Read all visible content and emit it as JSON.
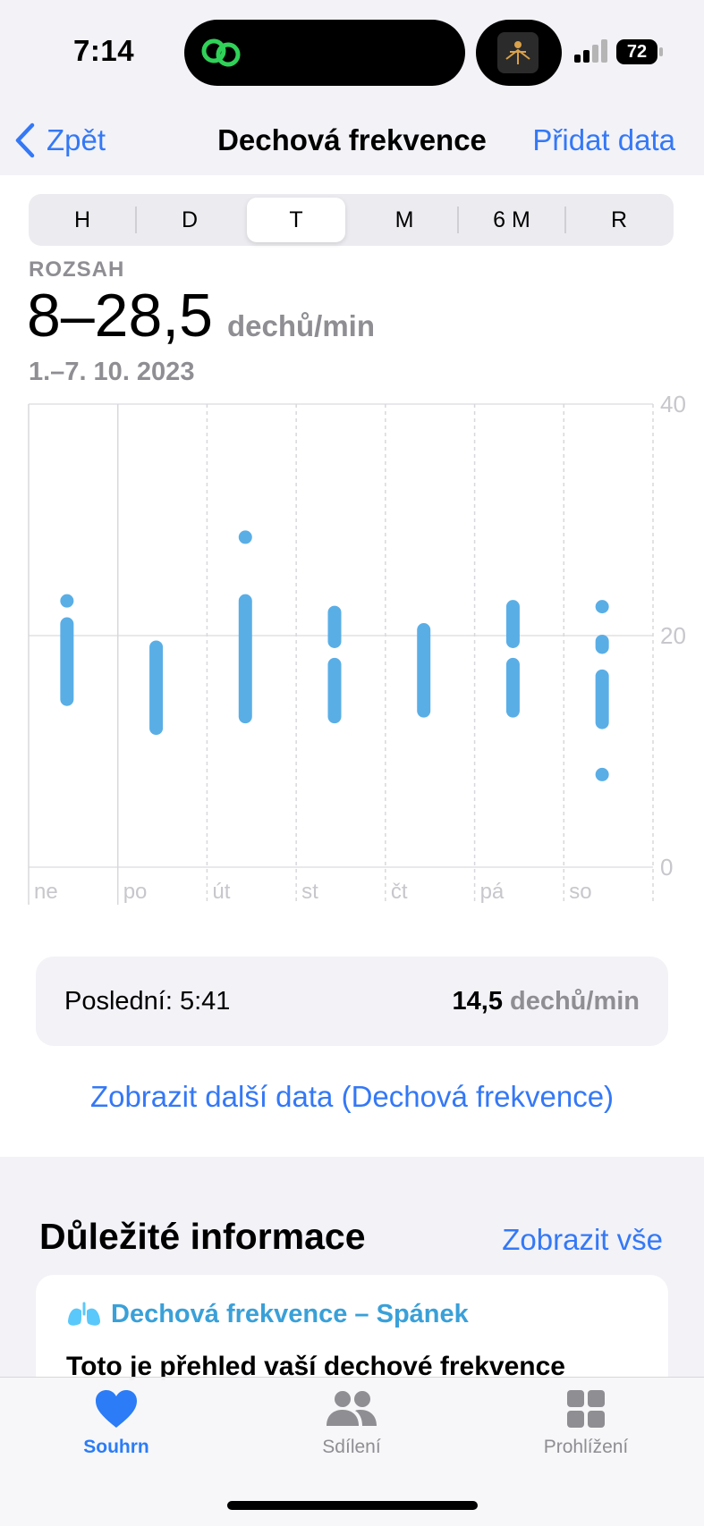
{
  "status_bar": {
    "time": "7:14",
    "battery": "72",
    "island_icon": "linked-rings-icon",
    "signal_icon": "cellular-signal-icon"
  },
  "nav": {
    "back_label": "Zpět",
    "title": "Dechová frekvence",
    "action_label": "Přidat data"
  },
  "segments": [
    {
      "label": "H",
      "selected": false
    },
    {
      "label": "D",
      "selected": false
    },
    {
      "label": "T",
      "selected": true
    },
    {
      "label": "M",
      "selected": false
    },
    {
      "label": "6 M",
      "selected": false
    },
    {
      "label": "R",
      "selected": false
    }
  ],
  "summary": {
    "range_label": "ROZSAH",
    "range_value": "8–28,5",
    "unit": "dechů/min",
    "date_range": "1.–7. 10. 2023"
  },
  "chart_data": {
    "type": "range",
    "categories": [
      "ne",
      "po",
      "út",
      "st",
      "čt",
      "pá",
      "so"
    ],
    "ylim": [
      0,
      40
    ],
    "yticks": [
      0,
      20,
      40
    ],
    "ytick_labels": [
      "0",
      "20",
      "40"
    ],
    "grid": true,
    "color": "#5aaee6",
    "series": [
      {
        "category": "ne",
        "segments": [
          [
            14.5,
            21
          ],
          [
            23,
            23
          ]
        ]
      },
      {
        "category": "po",
        "segments": [
          [
            12,
            19
          ]
        ]
      },
      {
        "category": "út",
        "segments": [
          [
            13,
            23
          ],
          [
            28.5,
            28.5
          ]
        ]
      },
      {
        "category": "st",
        "segments": [
          [
            13,
            17.5
          ],
          [
            19.5,
            22
          ]
        ]
      },
      {
        "category": "čt",
        "segments": [
          [
            13.5,
            20.5
          ]
        ]
      },
      {
        "category": "pá",
        "segments": [
          [
            13.5,
            17.5
          ],
          [
            19.5,
            22.5
          ]
        ]
      },
      {
        "category": "so",
        "segments": [
          [
            8,
            8
          ],
          [
            12.5,
            16.5
          ],
          [
            19,
            19.5
          ],
          [
            22.5,
            22.5
          ]
        ]
      }
    ]
  },
  "last": {
    "label": "Poslední: 5:41",
    "value": "14,5",
    "unit": "dechů/min"
  },
  "more_link": "Zobrazit další data (Dechová frekvence)",
  "highlights": {
    "title": "Důležité informace",
    "show_all": "Zobrazit vše",
    "card_title": "Dechová frekvence – Spánek",
    "card_icon": "lungs-icon",
    "card_text": "Toto je přehled vaší dechové frekvence"
  },
  "tabs": [
    {
      "label": "Souhrn",
      "icon": "heart-icon",
      "active": true
    },
    {
      "label": "Sdílení",
      "icon": "people-icon",
      "active": false
    },
    {
      "label": "Prohlížení",
      "icon": "grid-icon",
      "active": false
    }
  ]
}
